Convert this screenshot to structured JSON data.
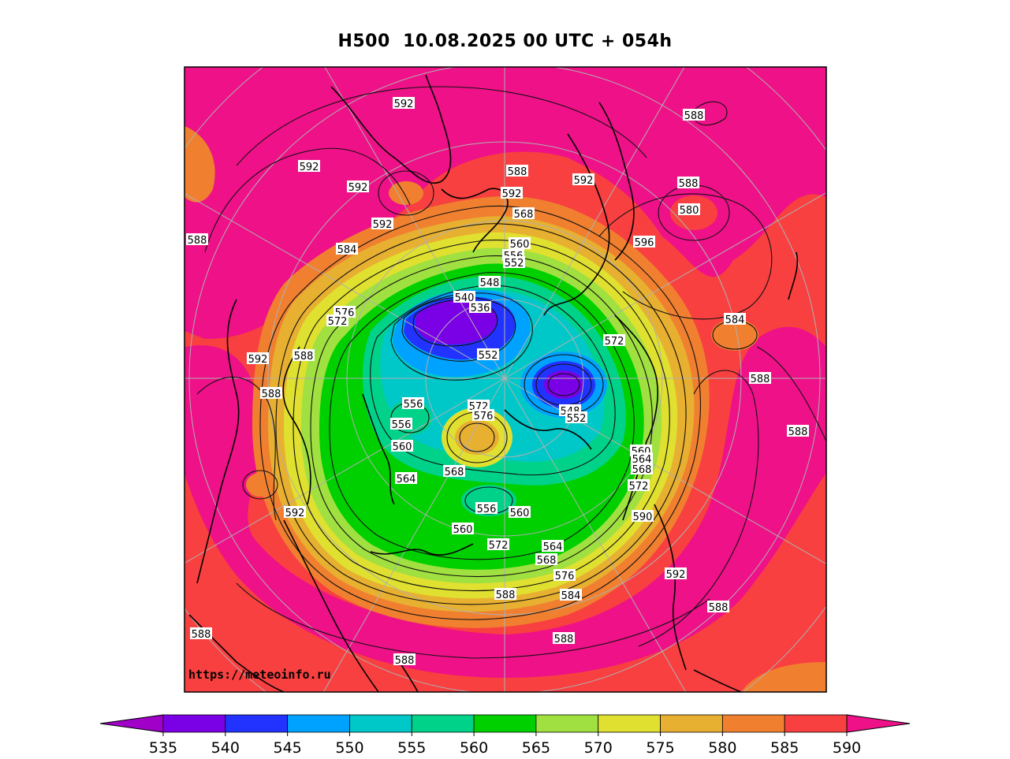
{
  "title": "H500  10.08.2025 00 UTC + 054h",
  "watermark": "https://meteoinfo.ru",
  "colorbar": {
    "levels": [
      "535",
      "540",
      "545",
      "550",
      "555",
      "560",
      "565",
      "570",
      "575",
      "580",
      "585",
      "590"
    ],
    "colors": [
      "#8a00d4",
      "#7a00e6",
      "#2233ff",
      "#00a2ff",
      "#00c8c8",
      "#00d28a",
      "#00d000",
      "#a0e040",
      "#e0e030",
      "#e8b030",
      "#f08030",
      "#f84040",
      "#ee1188"
    ],
    "under_color": "#a000c8",
    "over_color": "#ee1188"
  },
  "contour_labels": [
    {
      "text": "592"
    },
    {
      "text": "588"
    },
    {
      "text": "592"
    },
    {
      "text": "592"
    },
    {
      "text": "592"
    },
    {
      "text": "588"
    },
    {
      "text": "588"
    },
    {
      "text": "580"
    },
    {
      "text": "592"
    },
    {
      "text": "592"
    },
    {
      "text": "588"
    },
    {
      "text": "568"
    },
    {
      "text": "584"
    },
    {
      "text": "588"
    },
    {
      "text": "560"
    },
    {
      "text": "596"
    },
    {
      "text": "556"
    },
    {
      "text": "552"
    },
    {
      "text": "576"
    },
    {
      "text": "572"
    },
    {
      "text": "548"
    },
    {
      "text": "540"
    },
    {
      "text": "536"
    },
    {
      "text": "584"
    },
    {
      "text": "572"
    },
    {
      "text": "592"
    },
    {
      "text": "588"
    },
    {
      "text": "552"
    },
    {
      "text": "588"
    },
    {
      "text": "588"
    },
    {
      "text": "572"
    },
    {
      "text": "576"
    },
    {
      "text": "556"
    },
    {
      "text": "548"
    },
    {
      "text": "552"
    },
    {
      "text": "556"
    },
    {
      "text": "588"
    },
    {
      "text": "560"
    },
    {
      "text": "560"
    },
    {
      "text": "564"
    },
    {
      "text": "568"
    },
    {
      "text": "564"
    },
    {
      "text": "568"
    },
    {
      "text": "572"
    },
    {
      "text": "592"
    },
    {
      "text": "556"
    },
    {
      "text": "560"
    },
    {
      "text": "590"
    },
    {
      "text": "560"
    },
    {
      "text": "572"
    },
    {
      "text": "564"
    },
    {
      "text": "568"
    },
    {
      "text": "576"
    },
    {
      "text": "588"
    },
    {
      "text": "584"
    },
    {
      "text": "592"
    },
    {
      "text": "588"
    },
    {
      "text": "588"
    },
    {
      "text": "588"
    },
    {
      "text": "588"
    }
  ]
}
